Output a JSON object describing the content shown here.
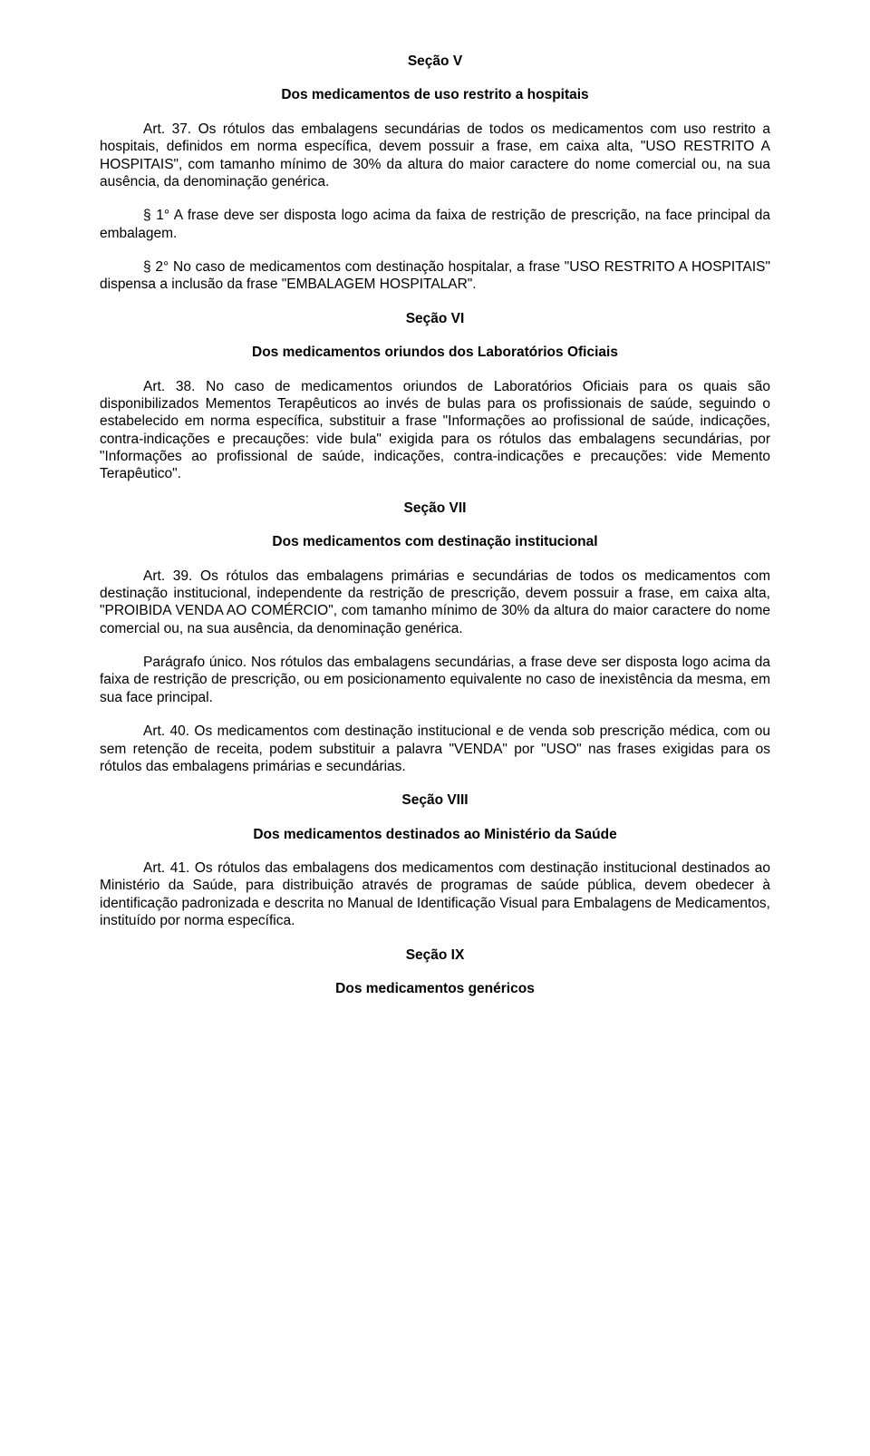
{
  "s5": {
    "title": "Seção V",
    "subtitle": "Dos medicamentos de uso restrito a hospitais",
    "p1": "Art. 37. Os rótulos das embalagens secundárias de todos os medicamentos com uso restrito a hospitais, definidos em norma específica, devem possuir a frase, em caixa alta, \"USO RESTRITO A HOSPITAIS\", com tamanho mínimo de 30% da altura do maior caractere do nome comercial ou, na sua ausência, da denominação genérica.",
    "p2": "§ 1° A frase deve ser disposta logo acima da faixa de restrição de prescrição, na face principal da embalagem.",
    "p3": "§ 2° No caso de medicamentos com destinação hospitalar, a frase \"USO RESTRITO A HOSPITAIS\" dispensa a inclusão da frase \"EMBALAGEM HOSPITALAR\"."
  },
  "s6": {
    "title": "Seção VI",
    "subtitle": "Dos medicamentos oriundos dos Laboratórios Oficiais",
    "p1": "Art. 38. No caso de medicamentos oriundos de Laboratórios Oficiais para os quais são disponibilizados Mementos Terapêuticos ao invés de bulas para os profissionais de saúde, seguindo o estabelecido em norma específica, substituir a frase \"Informações ao profissional de saúde, indicações, contra-indicações e precauções: vide bula\" exigida para os rótulos das embalagens secundárias, por \"Informações ao profissional de saúde, indicações, contra-indicações e precauções: vide Memento Terapêutico\"."
  },
  "s7": {
    "title": "Seção VII",
    "subtitle": "Dos medicamentos com destinação institucional",
    "p1": "Art. 39. Os rótulos das embalagens primárias e secundárias de todos os medicamentos com destinação institucional, independente da restrição de prescrição, devem possuir a frase, em caixa alta, \"PROIBIDA VENDA AO COMÉRCIO\", com tamanho mínimo de 30% da altura do maior caractere do nome comercial ou, na sua ausência, da denominação genérica.",
    "p2": "Parágrafo único. Nos rótulos das embalagens secundárias, a frase deve ser disposta logo acima da faixa de restrição de prescrição, ou em posicionamento equivalente no caso de inexistência da mesma, em sua face principal.",
    "p3": "Art. 40. Os medicamentos com destinação institucional e de venda sob prescrição médica, com ou sem retenção de receita, podem substituir a palavra \"VENDA\" por \"USO\" nas frases exigidas para os rótulos das embalagens primárias e secundárias."
  },
  "s8": {
    "title": "Seção VIII",
    "subtitle": "Dos medicamentos destinados ao Ministério da Saúde",
    "p1": "Art. 41. Os rótulos das embalagens dos medicamentos com destinação institucional destinados ao Ministério da Saúde, para distribuição através de programas de saúde pública, devem obedecer à identificação padronizada e descrita no Manual de Identificação Visual para Embalagens de Medicamentos, instituído por norma específica."
  },
  "s9": {
    "title": "Seção IX",
    "subtitle": "Dos medicamentos genéricos"
  }
}
